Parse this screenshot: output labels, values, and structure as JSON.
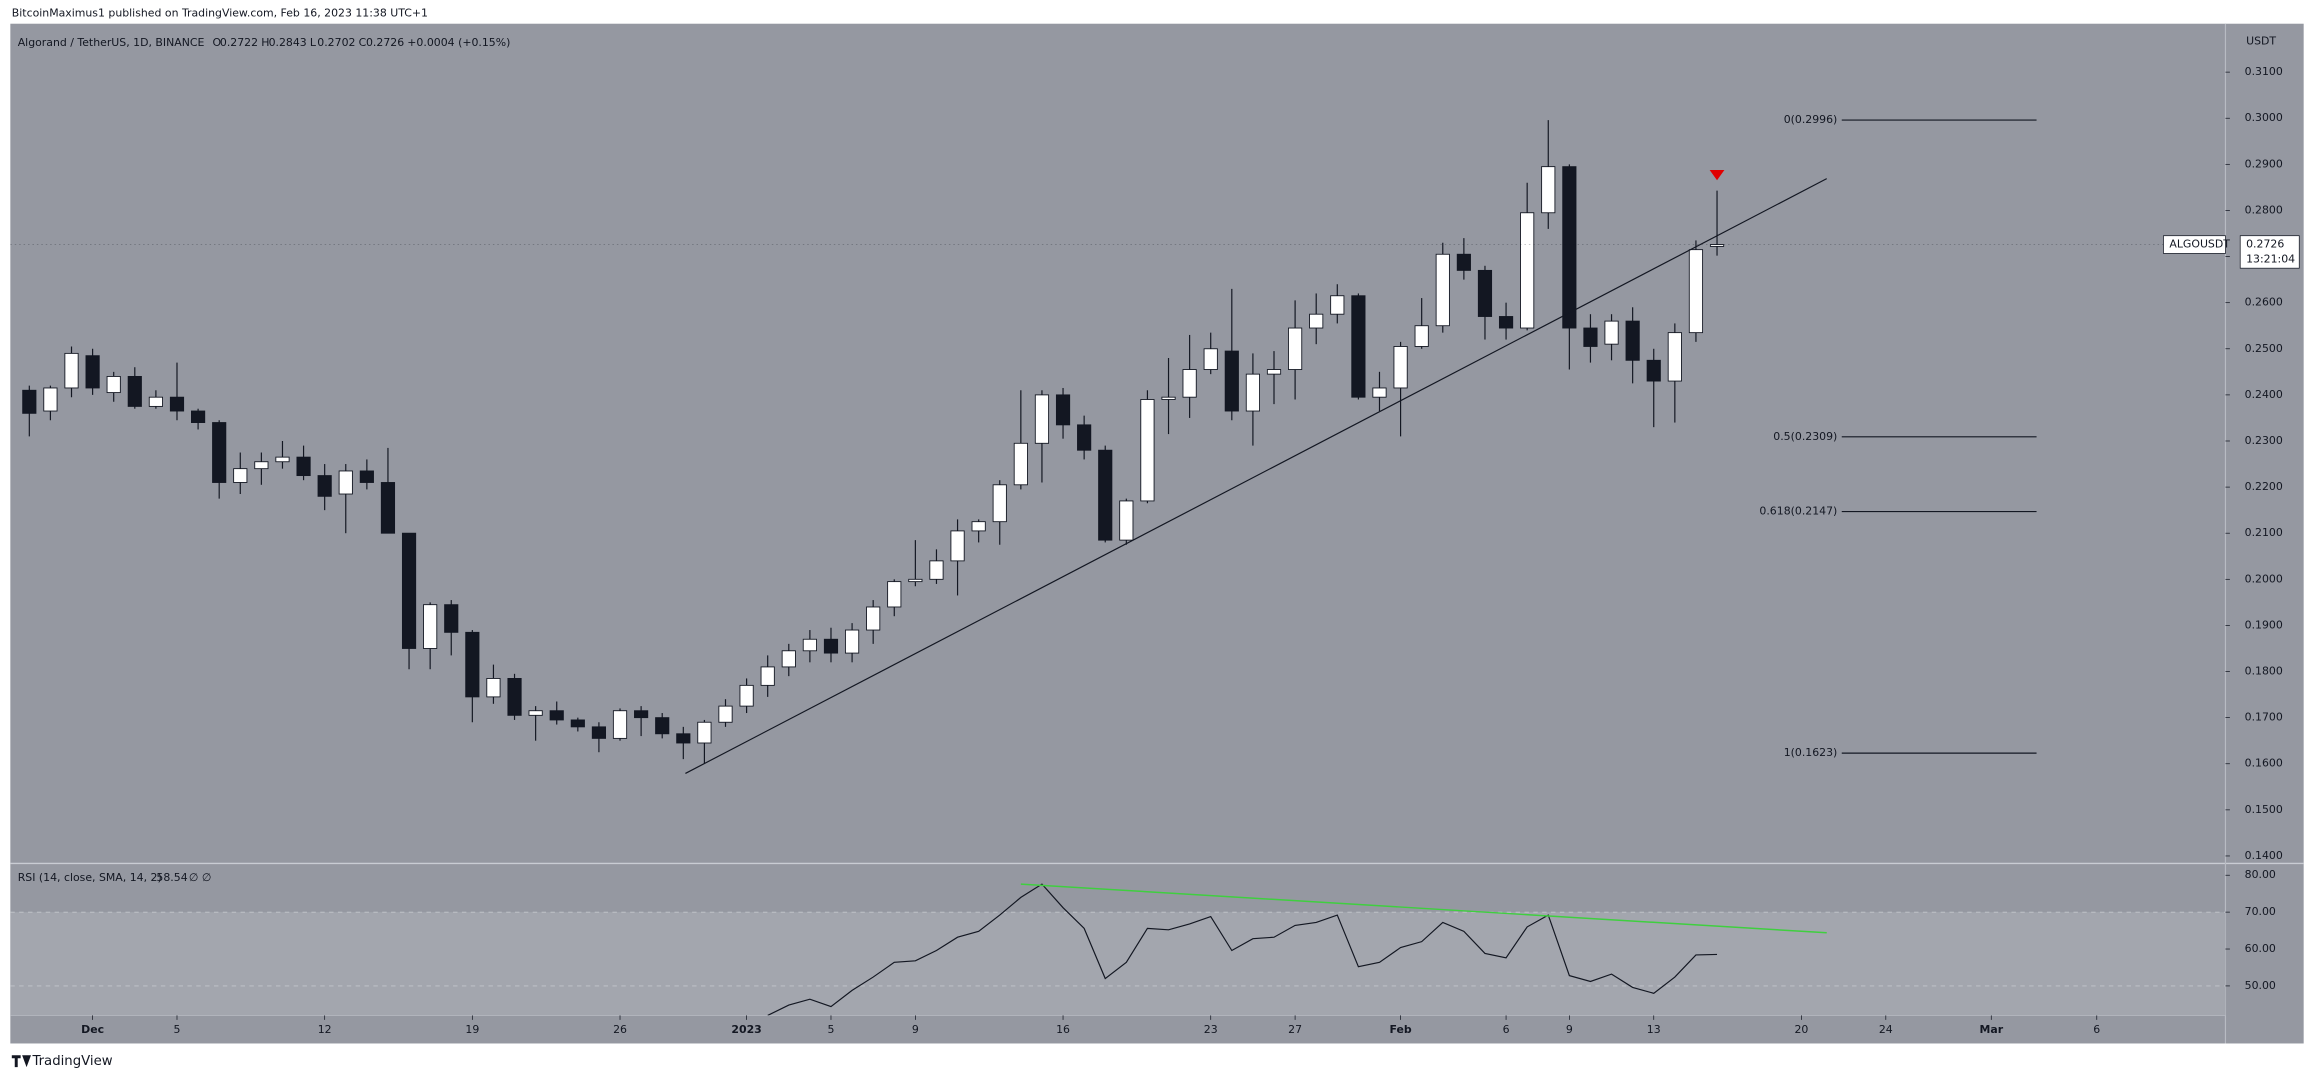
{
  "chart_data": {
    "type": "candlestick",
    "publisher": "BitcoinMaximus1 published on TradingView.com, Feb 16, 2023 11:38 UTC+1",
    "title": "Algorand / TetherUS, 1D, BINANCE",
    "ohlc_labels": [
      "O",
      "H",
      "L",
      "C"
    ],
    "change": "+0.0004 (+0.15%)",
    "currency": "USDT",
    "symbol": "ALGOUSDT",
    "countdown": "13:21:04",
    "brand": "TradingView",
    "xlim": [
      -0.9,
      104.1
    ],
    "xticks": [
      {
        "value": 3,
        "label": "Dec"
      },
      {
        "value": 7,
        "label": "5"
      },
      {
        "value": 14,
        "label": "12"
      },
      {
        "value": 21,
        "label": "19"
      },
      {
        "value": 28,
        "label": "26"
      },
      {
        "value": 34,
        "label": "2023"
      },
      {
        "value": 38,
        "label": "5"
      },
      {
        "value": 42,
        "label": "9"
      },
      {
        "value": 49,
        "label": "16"
      },
      {
        "value": 56,
        "label": "23"
      },
      {
        "value": 60,
        "label": "27"
      },
      {
        "value": 65,
        "label": "Feb"
      },
      {
        "value": 70,
        "label": "6"
      },
      {
        "value": 73,
        "label": "9"
      },
      {
        "value": 77,
        "label": "13"
      },
      {
        "value": 84,
        "label": "20"
      },
      {
        "value": 88,
        "label": "24"
      },
      {
        "value": 93,
        "label": "Mar"
      },
      {
        "value": 98,
        "label": "6"
      }
    ],
    "ylim": [
      0.1387,
      0.3205
    ],
    "yticks": [
      {
        "value": 0.31,
        "label": "0.3100"
      },
      {
        "value": 0.3,
        "label": "0.3000"
      },
      {
        "value": 0.29,
        "label": "0.2900"
      },
      {
        "value": 0.28,
        "label": "0.2800"
      },
      {
        "value": 0.27,
        "label": "0.2700"
      },
      {
        "value": 0.26,
        "label": "0.2600"
      },
      {
        "value": 0.25,
        "label": "0.2500"
      },
      {
        "value": 0.24,
        "label": "0.2400"
      },
      {
        "value": 0.23,
        "label": "0.2300"
      },
      {
        "value": 0.22,
        "label": "0.2200"
      },
      {
        "value": 0.21,
        "label": "0.2100"
      },
      {
        "value": 0.2,
        "label": "0.2000"
      },
      {
        "value": 0.19,
        "label": "0.1900"
      },
      {
        "value": 0.18,
        "label": "0.1800"
      },
      {
        "value": 0.17,
        "label": "0.1700"
      },
      {
        "value": 0.16,
        "label": "0.1600"
      },
      {
        "value": 0.15,
        "label": "0.1500"
      },
      {
        "value": 0.14,
        "label": "0.1400"
      }
    ],
    "open": [
      0.241,
      0.2365,
      0.2415,
      0.2485,
      0.2405,
      0.244,
      0.2375,
      0.2395,
      0.2365,
      0.234,
      0.221,
      0.224,
      0.2255,
      0.2265,
      0.2225,
      0.2185,
      0.2235,
      0.221,
      0.21,
      0.185,
      0.1945,
      0.1885,
      0.1745,
      0.1785,
      0.1705,
      0.1715,
      0.1695,
      0.168,
      0.1655,
      0.1715,
      0.17,
      0.1665,
      0.1645,
      0.169,
      0.1725,
      0.177,
      0.181,
      0.1845,
      0.187,
      0.184,
      0.189,
      0.194,
      0.1995,
      0.2,
      0.204,
      0.2105,
      0.2125,
      0.2205,
      0.2295,
      0.24,
      0.2335,
      0.228,
      0.2085,
      0.217,
      0.239,
      0.2395,
      0.2455,
      0.2495,
      0.2365,
      0.2445,
      0.2455,
      0.2545,
      0.2575,
      0.2615,
      0.2395,
      0.2415,
      0.2505,
      0.255,
      0.2705,
      0.267,
      0.257,
      0.2545,
      0.2795,
      0.2895,
      0.2545,
      0.251,
      0.256,
      0.2475,
      0.243,
      0.2535,
      0.2722
    ],
    "high": [
      0.242,
      0.242,
      0.2505,
      0.25,
      0.245,
      0.246,
      0.241,
      0.247,
      0.237,
      0.2345,
      0.2275,
      0.2275,
      0.23,
      0.229,
      0.225,
      0.225,
      0.226,
      0.2285,
      0.21,
      0.195,
      0.1955,
      0.189,
      0.1815,
      0.1795,
      0.1725,
      0.1735,
      0.17,
      0.169,
      0.172,
      0.1725,
      0.171,
      0.168,
      0.1695,
      0.174,
      0.1785,
      0.1835,
      0.186,
      0.189,
      0.1895,
      0.1905,
      0.1955,
      0.2,
      0.2085,
      0.2065,
      0.213,
      0.213,
      0.2215,
      0.241,
      0.241,
      0.2415,
      0.2355,
      0.229,
      0.2175,
      0.241,
      0.248,
      0.253,
      0.2535,
      0.263,
      0.249,
      0.2495,
      0.2605,
      0.262,
      0.264,
      0.262,
      0.245,
      0.2515,
      0.261,
      0.273,
      0.274,
      0.268,
      0.26,
      0.286,
      0.2996,
      0.29,
      0.2575,
      0.2575,
      0.259,
      0.25,
      0.2555,
      0.2735,
      0.2843
    ],
    "low": [
      0.231,
      0.2345,
      0.2395,
      0.24,
      0.2385,
      0.237,
      0.237,
      0.2345,
      0.2325,
      0.2175,
      0.2185,
      0.2205,
      0.224,
      0.2215,
      0.215,
      0.21,
      0.2195,
      0.21,
      0.1805,
      0.1805,
      0.1835,
      0.169,
      0.173,
      0.1695,
      0.165,
      0.1685,
      0.167,
      0.1625,
      0.165,
      0.166,
      0.1655,
      0.161,
      0.16,
      0.168,
      0.171,
      0.1745,
      0.179,
      0.182,
      0.182,
      0.182,
      0.186,
      0.192,
      0.1985,
      0.199,
      0.1965,
      0.208,
      0.2075,
      0.2195,
      0.221,
      0.2305,
      0.226,
      0.208,
      0.2075,
      0.2165,
      0.2315,
      0.235,
      0.2445,
      0.2345,
      0.229,
      0.238,
      0.239,
      0.251,
      0.2555,
      0.239,
      0.2365,
      0.231,
      0.25,
      0.2535,
      0.265,
      0.252,
      0.252,
      0.254,
      0.276,
      0.2455,
      0.247,
      0.2475,
      0.2425,
      0.233,
      0.234,
      0.2515,
      0.2702
    ],
    "close": [
      0.236,
      0.2415,
      0.249,
      0.2415,
      0.244,
      0.2375,
      0.2395,
      0.2365,
      0.234,
      0.221,
      0.224,
      0.2255,
      0.2265,
      0.2225,
      0.218,
      0.2235,
      0.221,
      0.21,
      0.185,
      0.1945,
      0.1885,
      0.1745,
      0.1785,
      0.1705,
      0.1715,
      0.1695,
      0.168,
      0.1655,
      0.1715,
      0.17,
      0.1665,
      0.1645,
      0.169,
      0.1725,
      0.177,
      0.181,
      0.1845,
      0.187,
      0.184,
      0.189,
      0.194,
      0.1995,
      0.2,
      0.204,
      0.2105,
      0.2125,
      0.2205,
      0.2295,
      0.24,
      0.2335,
      0.228,
      0.2085,
      0.217,
      0.239,
      0.2395,
      0.2455,
      0.25,
      0.2365,
      0.2445,
      0.2455,
      0.2545,
      0.2575,
      0.2615,
      0.2395,
      0.2415,
      0.2505,
      0.255,
      0.2705,
      0.267,
      0.257,
      0.2545,
      0.2795,
      0.2895,
      0.2545,
      0.2505,
      0.256,
      0.2475,
      0.243,
      0.2535,
      0.2715,
      0.2726
    ],
    "trendline": {
      "x": [
        31.1,
        85.2
      ],
      "y": [
        0.1579,
        0.2869
      ]
    },
    "marker": {
      "x": 80,
      "y": 0.2875,
      "color": "#e00000"
    },
    "fib_levels": [
      {
        "value": 0.2996,
        "label": "0(0.2996)"
      },
      {
        "value": 0.2309,
        "label": "0.5(0.2309)"
      },
      {
        "value": 0.2147,
        "label": "0.618(0.2147)"
      },
      {
        "value": 0.1623,
        "label": "1(0.1623)"
      }
    ],
    "rsi": {
      "title": "RSI (14, close, SMA, 14, 2)",
      "last": "58.54",
      "extra": "∅ ∅",
      "ylim": [
        42,
        82.8
      ],
      "yticks": [
        {
          "value": 80,
          "label": "80.00"
        },
        {
          "value": 70,
          "label": "70.00"
        },
        {
          "value": 60,
          "label": "60.00"
        },
        {
          "value": 50,
          "label": "50.00"
        }
      ],
      "band": [
        70,
        30
      ],
      "values": [
        null,
        null,
        null,
        null,
        null,
        null,
        null,
        null,
        null,
        null,
        null,
        null,
        null,
        null,
        null,
        null,
        null,
        null,
        null,
        null,
        null,
        null,
        null,
        null,
        null,
        null,
        null,
        null,
        null,
        null,
        null,
        null,
        null,
        null,
        null,
        42,
        44.8,
        46.4,
        44.4,
        48.8,
        52.4,
        56.4,
        56.8,
        59.6,
        63.2,
        64.8,
        69.2,
        74,
        77.6,
        71.2,
        65.6,
        52,
        56.4,
        65.6,
        65.2,
        66.8,
        68.8,
        59.6,
        62.8,
        63.2,
        66.4,
        67.2,
        69.2,
        55.2,
        56.4,
        60.4,
        62,
        67.2,
        64.8,
        58.8,
        57.6,
        66,
        69.2,
        52.8,
        51.2,
        53.2,
        49.6,
        48,
        52.4,
        58.4,
        58.54
      ],
      "trendline": {
        "x": [
          47,
          85.2
        ],
        "y": [
          77.6,
          64.4
        ],
        "color": "#3fcf3f"
      }
    }
  }
}
